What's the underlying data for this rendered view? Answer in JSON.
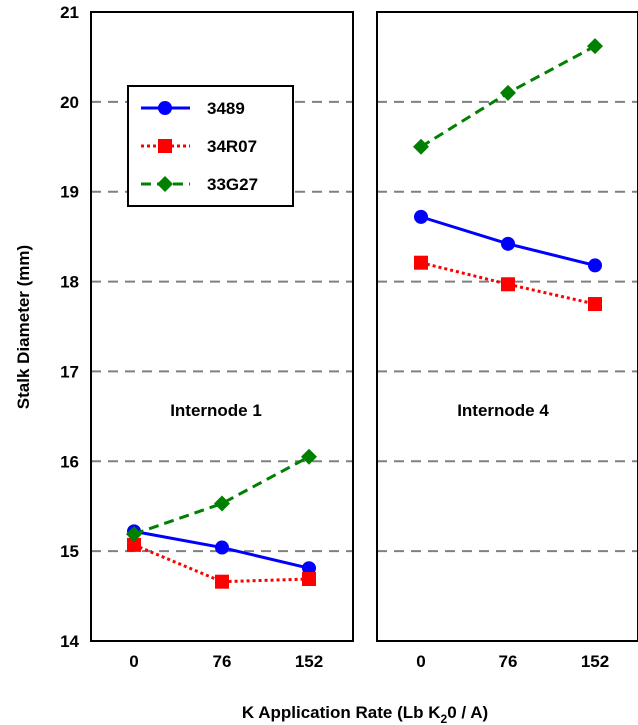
{
  "chart_data": {
    "type": "line",
    "ylabel": "Stalk Diameter (mm)",
    "xlabel": {
      "prefix": "K Application Rate (Lb K",
      "sub": "2",
      "suffix": "0 / A)"
    },
    "ylim": [
      14,
      21
    ],
    "yticks": [
      "14",
      "15",
      "16",
      "17",
      "18",
      "19",
      "20",
      "21"
    ],
    "grid": "horizontal dashed",
    "legend_position": "top-left of first panel",
    "colors": {
      "3489": "#0000ff",
      "34R07": "#ff0000",
      "33G27": "#008000"
    },
    "panels": [
      {
        "label": "Internode 1",
        "x": [
          "0",
          "76",
          "152"
        ],
        "series": [
          {
            "name": "3489",
            "values": [
              15.22,
              15.04,
              14.81
            ]
          },
          {
            "name": "34R07",
            "values": [
              15.07,
              14.66,
              14.69
            ]
          },
          {
            "name": "33G27",
            "values": [
              15.19,
              15.53,
              16.05
            ]
          }
        ]
      },
      {
        "label": "Internode 4",
        "x": [
          "0",
          "76",
          "152"
        ],
        "series": [
          {
            "name": "3489",
            "values": [
              18.72,
              18.42,
              18.18
            ]
          },
          {
            "name": "34R07",
            "values": [
              18.21,
              17.97,
              17.75
            ]
          },
          {
            "name": "33G27",
            "values": [
              19.5,
              20.1,
              20.62
            ]
          }
        ]
      }
    ]
  }
}
